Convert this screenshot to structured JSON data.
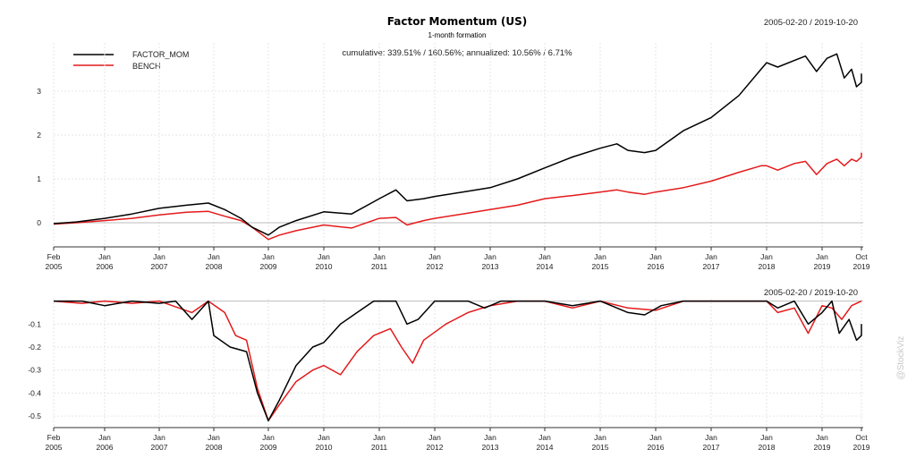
{
  "chart_data": [
    {
      "type": "line",
      "title": "Factor Momentum (US)",
      "subtitle": "1-month formation",
      "date_range": "2005-02-20 / 2019-10-20",
      "annotation": "cumulative: 339.51% / 160.56%; annualized: 10.56% / 6.71%",
      "legend_position": "top-left",
      "grid": true,
      "ylim": [
        -0.55,
        4.1
      ],
      "y_ticks": [
        0,
        1,
        2,
        3
      ],
      "x_tick_labels": [
        [
          "Feb",
          "2005"
        ],
        [
          "Jan",
          "2006"
        ],
        [
          "Jan",
          "2007"
        ],
        [
          "Jan",
          "2008"
        ],
        [
          "Jan",
          "2009"
        ],
        [
          "Jan",
          "2010"
        ],
        [
          "Jan",
          "2011"
        ],
        [
          "Jan",
          "2012"
        ],
        [
          "Jan",
          "2013"
        ],
        [
          "Jan",
          "2014"
        ],
        [
          "Jan",
          "2015"
        ],
        [
          "Jan",
          "2016"
        ],
        [
          "Jan",
          "2017"
        ],
        [
          "Jan",
          "2018"
        ],
        [
          "Jan",
          "2019"
        ],
        [
          "Oct",
          "2019"
        ]
      ],
      "series": [
        {
          "name": "FACTOR_MOM",
          "color": "#000000",
          "points": [
            [
              2005.1,
              -0.02
            ],
            [
              2005.5,
              0.02
            ],
            [
              2006.0,
              0.1
            ],
            [
              2006.5,
              0.2
            ],
            [
              2007.0,
              0.33
            ],
            [
              2007.5,
              0.4
            ],
            [
              2007.9,
              0.45
            ],
            [
              2008.2,
              0.3
            ],
            [
              2008.5,
              0.1
            ],
            [
              2008.7,
              -0.1
            ],
            [
              2009.0,
              -0.28
            ],
            [
              2009.2,
              -0.1
            ],
            [
              2009.5,
              0.05
            ],
            [
              2010.0,
              0.25
            ],
            [
              2010.5,
              0.2
            ],
            [
              2011.0,
              0.55
            ],
            [
              2011.3,
              0.75
            ],
            [
              2011.5,
              0.5
            ],
            [
              2011.8,
              0.55
            ],
            [
              2012.0,
              0.6
            ],
            [
              2012.5,
              0.7
            ],
            [
              2013.0,
              0.8
            ],
            [
              2013.5,
              1.0
            ],
            [
              2014.0,
              1.25
            ],
            [
              2014.5,
              1.5
            ],
            [
              2015.0,
              1.7
            ],
            [
              2015.3,
              1.8
            ],
            [
              2015.5,
              1.65
            ],
            [
              2015.8,
              1.6
            ],
            [
              2016.0,
              1.65
            ],
            [
              2016.5,
              2.1
            ],
            [
              2017.0,
              2.4
            ],
            [
              2017.5,
              2.9
            ],
            [
              2017.9,
              3.5
            ],
            [
              2018.0,
              3.65
            ],
            [
              2018.2,
              3.55
            ],
            [
              2018.5,
              3.7
            ],
            [
              2018.7,
              3.8
            ],
            [
              2018.9,
              3.45
            ],
            [
              2019.1,
              3.75
            ],
            [
              2019.3,
              3.85
            ],
            [
              2019.45,
              3.3
            ],
            [
              2019.6,
              3.5
            ],
            [
              2019.7,
              3.1
            ],
            [
              2019.8,
              3.2
            ],
            [
              2019.8,
              3.4
            ]
          ]
        },
        {
          "name": "BENCH",
          "color": "#e31a1c",
          "points": [
            [
              2005.1,
              -0.03
            ],
            [
              2005.5,
              0.0
            ],
            [
              2006.0,
              0.05
            ],
            [
              2006.5,
              0.1
            ],
            [
              2007.0,
              0.18
            ],
            [
              2007.5,
              0.24
            ],
            [
              2007.9,
              0.26
            ],
            [
              2008.2,
              0.15
            ],
            [
              2008.5,
              0.05
            ],
            [
              2008.7,
              -0.1
            ],
            [
              2009.0,
              -0.38
            ],
            [
              2009.2,
              -0.28
            ],
            [
              2009.5,
              -0.18
            ],
            [
              2010.0,
              -0.05
            ],
            [
              2010.5,
              -0.12
            ],
            [
              2011.0,
              0.1
            ],
            [
              2011.3,
              0.12
            ],
            [
              2011.5,
              -0.05
            ],
            [
              2011.8,
              0.05
            ],
            [
              2012.0,
              0.1
            ],
            [
              2012.5,
              0.2
            ],
            [
              2013.0,
              0.3
            ],
            [
              2013.5,
              0.4
            ],
            [
              2014.0,
              0.55
            ],
            [
              2014.5,
              0.62
            ],
            [
              2015.0,
              0.7
            ],
            [
              2015.3,
              0.75
            ],
            [
              2015.5,
              0.7
            ],
            [
              2015.8,
              0.65
            ],
            [
              2016.0,
              0.7
            ],
            [
              2016.5,
              0.8
            ],
            [
              2017.0,
              0.95
            ],
            [
              2017.5,
              1.15
            ],
            [
              2017.9,
              1.3
            ],
            [
              2018.0,
              1.3
            ],
            [
              2018.2,
              1.2
            ],
            [
              2018.5,
              1.35
            ],
            [
              2018.7,
              1.4
            ],
            [
              2018.9,
              1.1
            ],
            [
              2019.1,
              1.35
            ],
            [
              2019.3,
              1.45
            ],
            [
              2019.45,
              1.3
            ],
            [
              2019.6,
              1.45
            ],
            [
              2019.7,
              1.4
            ],
            [
              2019.8,
              1.5
            ],
            [
              2019.8,
              1.6
            ]
          ]
        }
      ]
    },
    {
      "type": "line",
      "title": "",
      "date_range": "2005-02-20 / 2019-10-20",
      "grid": true,
      "ylim": [
        -0.55,
        0.01
      ],
      "y_ticks": [
        -0.1,
        -0.2,
        -0.3,
        -0.4,
        -0.5
      ],
      "x_tick_labels": [
        [
          "Feb",
          "2005"
        ],
        [
          "Jan",
          "2006"
        ],
        [
          "Jan",
          "2007"
        ],
        [
          "Jan",
          "2008"
        ],
        [
          "Jan",
          "2009"
        ],
        [
          "Jan",
          "2010"
        ],
        [
          "Jan",
          "2011"
        ],
        [
          "Jan",
          "2012"
        ],
        [
          "Jan",
          "2013"
        ],
        [
          "Jan",
          "2014"
        ],
        [
          "Jan",
          "2015"
        ],
        [
          "Jan",
          "2016"
        ],
        [
          "Jan",
          "2017"
        ],
        [
          "Jan",
          "2018"
        ],
        [
          "Jan",
          "2019"
        ],
        [
          "Oct",
          "2019"
        ]
      ],
      "series": [
        {
          "name": "FACTOR_MOM",
          "color": "#000000",
          "points": [
            [
              2005.1,
              0.0
            ],
            [
              2005.6,
              0.0
            ],
            [
              2006.0,
              -0.02
            ],
            [
              2006.5,
              0.0
            ],
            [
              2007.0,
              -0.01
            ],
            [
              2007.3,
              0.0
            ],
            [
              2007.6,
              -0.08
            ],
            [
              2007.9,
              0.0
            ],
            [
              2008.0,
              -0.15
            ],
            [
              2008.3,
              -0.2
            ],
            [
              2008.6,
              -0.22
            ],
            [
              2008.8,
              -0.4
            ],
            [
              2009.0,
              -0.52
            ],
            [
              2009.2,
              -0.43
            ],
            [
              2009.5,
              -0.28
            ],
            [
              2009.8,
              -0.2
            ],
            [
              2010.0,
              -0.18
            ],
            [
              2010.3,
              -0.1
            ],
            [
              2010.6,
              -0.05
            ],
            [
              2010.9,
              0.0
            ],
            [
              2011.3,
              0.0
            ],
            [
              2011.5,
              -0.1
            ],
            [
              2011.7,
              -0.08
            ],
            [
              2012.0,
              0.0
            ],
            [
              2012.6,
              0.0
            ],
            [
              2012.9,
              -0.03
            ],
            [
              2013.2,
              0.0
            ],
            [
              2014.0,
              0.0
            ],
            [
              2014.5,
              -0.02
            ],
            [
              2015.0,
              0.0
            ],
            [
              2015.5,
              -0.05
            ],
            [
              2015.8,
              -0.06
            ],
            [
              2016.1,
              -0.02
            ],
            [
              2016.5,
              0.0
            ],
            [
              2017.5,
              0.0
            ],
            [
              2018.0,
              0.0
            ],
            [
              2018.2,
              -0.03
            ],
            [
              2018.5,
              0.0
            ],
            [
              2018.75,
              -0.1
            ],
            [
              2019.0,
              -0.05
            ],
            [
              2019.2,
              0.0
            ],
            [
              2019.35,
              -0.14
            ],
            [
              2019.55,
              -0.08
            ],
            [
              2019.7,
              -0.17
            ],
            [
              2019.8,
              -0.15
            ],
            [
              2019.8,
              -0.1
            ]
          ]
        },
        {
          "name": "BENCH",
          "color": "#e31a1c",
          "points": [
            [
              2005.1,
              0.0
            ],
            [
              2005.6,
              -0.01
            ],
            [
              2006.0,
              0.0
            ],
            [
              2006.5,
              -0.01
            ],
            [
              2007.0,
              0.0
            ],
            [
              2007.6,
              -0.05
            ],
            [
              2007.9,
              0.0
            ],
            [
              2008.2,
              -0.05
            ],
            [
              2008.4,
              -0.15
            ],
            [
              2008.6,
              -0.17
            ],
            [
              2008.8,
              -0.38
            ],
            [
              2009.0,
              -0.52
            ],
            [
              2009.2,
              -0.45
            ],
            [
              2009.5,
              -0.35
            ],
            [
              2009.8,
              -0.3
            ],
            [
              2010.0,
              -0.28
            ],
            [
              2010.3,
              -0.32
            ],
            [
              2010.6,
              -0.22
            ],
            [
              2010.9,
              -0.15
            ],
            [
              2011.2,
              -0.12
            ],
            [
              2011.4,
              -0.2
            ],
            [
              2011.6,
              -0.27
            ],
            [
              2011.8,
              -0.17
            ],
            [
              2012.2,
              -0.1
            ],
            [
              2012.6,
              -0.05
            ],
            [
              2013.0,
              -0.02
            ],
            [
              2013.5,
              0.0
            ],
            [
              2014.0,
              0.0
            ],
            [
              2014.5,
              -0.03
            ],
            [
              2015.0,
              0.0
            ],
            [
              2015.5,
              -0.03
            ],
            [
              2016.0,
              -0.04
            ],
            [
              2016.5,
              0.0
            ],
            [
              2017.0,
              0.0
            ],
            [
              2017.5,
              0.0
            ],
            [
              2018.0,
              0.0
            ],
            [
              2018.2,
              -0.05
            ],
            [
              2018.5,
              -0.03
            ],
            [
              2018.75,
              -0.14
            ],
            [
              2019.0,
              -0.02
            ],
            [
              2019.2,
              -0.03
            ],
            [
              2019.4,
              -0.08
            ],
            [
              2019.6,
              -0.02
            ],
            [
              2019.8,
              0.0
            ]
          ]
        }
      ]
    }
  ],
  "watermark": "@StockViz"
}
